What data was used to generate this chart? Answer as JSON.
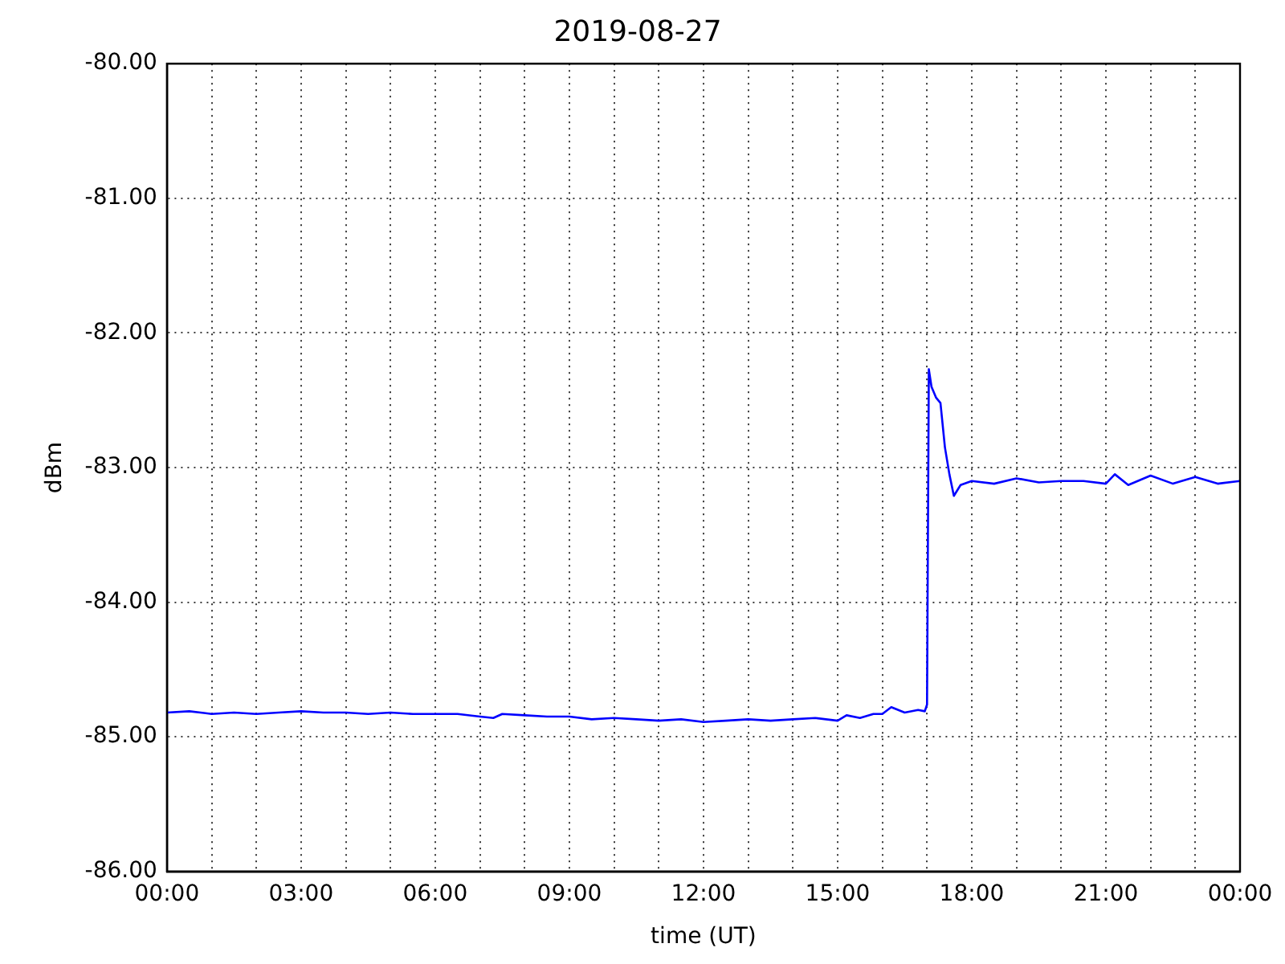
{
  "chart_data": {
    "type": "line",
    "title": "2019-08-27",
    "xlabel": "time (UT)",
    "ylabel": "dBm",
    "x": [
      0,
      0.5,
      1,
      1.5,
      2,
      2.5,
      3,
      3.5,
      4,
      4.5,
      5,
      5.5,
      6,
      6.5,
      7,
      7.3,
      7.5,
      8,
      8.5,
      9,
      9.5,
      10,
      10.5,
      11,
      11.5,
      12,
      12.5,
      13,
      13.5,
      14,
      14.5,
      15,
      15.2,
      15.5,
      15.8,
      16,
      16.2,
      16.5,
      16.8,
      16.95,
      17,
      17.04,
      17.1,
      17.2,
      17.3,
      17.4,
      17.5,
      17.6,
      17.75,
      18,
      18.5,
      19,
      19.5,
      20,
      20.5,
      21,
      21.2,
      21.5,
      22,
      22.5,
      23,
      23.5,
      24
    ],
    "series": [
      {
        "color": "#0000ff",
        "values": [
          -84.82,
          -84.81,
          -84.83,
          -84.82,
          -84.83,
          -84.82,
          -84.81,
          -84.82,
          -84.82,
          -84.83,
          -84.82,
          -84.83,
          -84.83,
          -84.83,
          -84.85,
          -84.86,
          -84.83,
          -84.84,
          -84.85,
          -84.85,
          -84.87,
          -84.86,
          -84.87,
          -84.88,
          -84.87,
          -84.89,
          -84.88,
          -84.87,
          -84.88,
          -84.87,
          -84.86,
          -84.88,
          -84.84,
          -84.86,
          -84.83,
          -84.83,
          -84.78,
          -84.82,
          -84.8,
          -84.81,
          -84.76,
          -82.27,
          -82.4,
          -82.48,
          -82.52,
          -82.85,
          -83.05,
          -83.21,
          -83.13,
          -83.1,
          -83.12,
          -83.08,
          -83.11,
          -83.1,
          -83.1,
          -83.12,
          -83.05,
          -83.13,
          -83.06,
          -83.12,
          -83.07,
          -83.12,
          -83.1
        ]
      }
    ],
    "xlim": [
      0,
      24
    ],
    "xticks": [
      {
        "value": 0,
        "label": "00:00"
      },
      {
        "value": 1,
        "label": null
      },
      {
        "value": 2,
        "label": null
      },
      {
        "value": 3,
        "label": "03:00"
      },
      {
        "value": 4,
        "label": null
      },
      {
        "value": 5,
        "label": null
      },
      {
        "value": 6,
        "label": "06:00"
      },
      {
        "value": 7,
        "label": null
      },
      {
        "value": 8,
        "label": null
      },
      {
        "value": 9,
        "label": "09:00"
      },
      {
        "value": 10,
        "label": null
      },
      {
        "value": 11,
        "label": null
      },
      {
        "value": 12,
        "label": "12:00"
      },
      {
        "value": 13,
        "label": null
      },
      {
        "value": 14,
        "label": null
      },
      {
        "value": 15,
        "label": "15:00"
      },
      {
        "value": 16,
        "label": null
      },
      {
        "value": 17,
        "label": null
      },
      {
        "value": 18,
        "label": "18:00"
      },
      {
        "value": 19,
        "label": null
      },
      {
        "value": 20,
        "label": null
      },
      {
        "value": 21,
        "label": "21:00"
      },
      {
        "value": 22,
        "label": null
      },
      {
        "value": 23,
        "label": null
      },
      {
        "value": 24,
        "label": "00:00"
      }
    ],
    "ylim": [
      -86,
      -80
    ],
    "yticks": [
      {
        "value": -86,
        "label": "-86.00"
      },
      {
        "value": -85,
        "label": "-85.00"
      },
      {
        "value": -84,
        "label": "-84.00"
      },
      {
        "value": -83,
        "label": "-83.00"
      },
      {
        "value": -82,
        "label": "-82.00"
      },
      {
        "value": -81,
        "label": "-81.00"
      },
      {
        "value": -80,
        "label": "-80.00"
      }
    ],
    "grid": true,
    "legend": false,
    "marker": "none",
    "line_style": "solid"
  }
}
